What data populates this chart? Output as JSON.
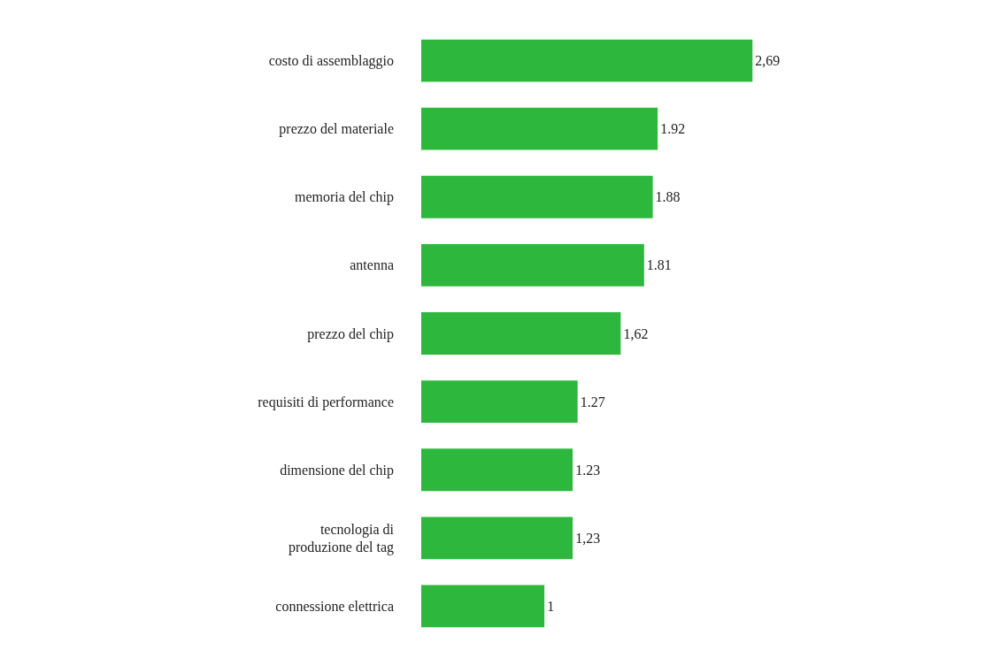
{
  "chart_data": {
    "type": "bar",
    "orientation": "horizontal",
    "categories": [
      "costo di assemblaggio",
      "prezzo del materiale",
      "memoria del chip",
      "antenna",
      "prezzo del chip",
      "requisiti di performance",
      "dimensione del chip",
      "tecnologia di\nproduzione del tag",
      "connessione elettrica"
    ],
    "values": [
      2.69,
      1.92,
      1.88,
      1.81,
      1.62,
      1.27,
      1.23,
      1.23,
      1
    ],
    "value_labels": [
      "2,69",
      "1.92",
      "1.88",
      "1.81",
      "1,62",
      "1.27",
      "1.23",
      "1,23",
      "1"
    ],
    "color": "#2db83d"
  }
}
